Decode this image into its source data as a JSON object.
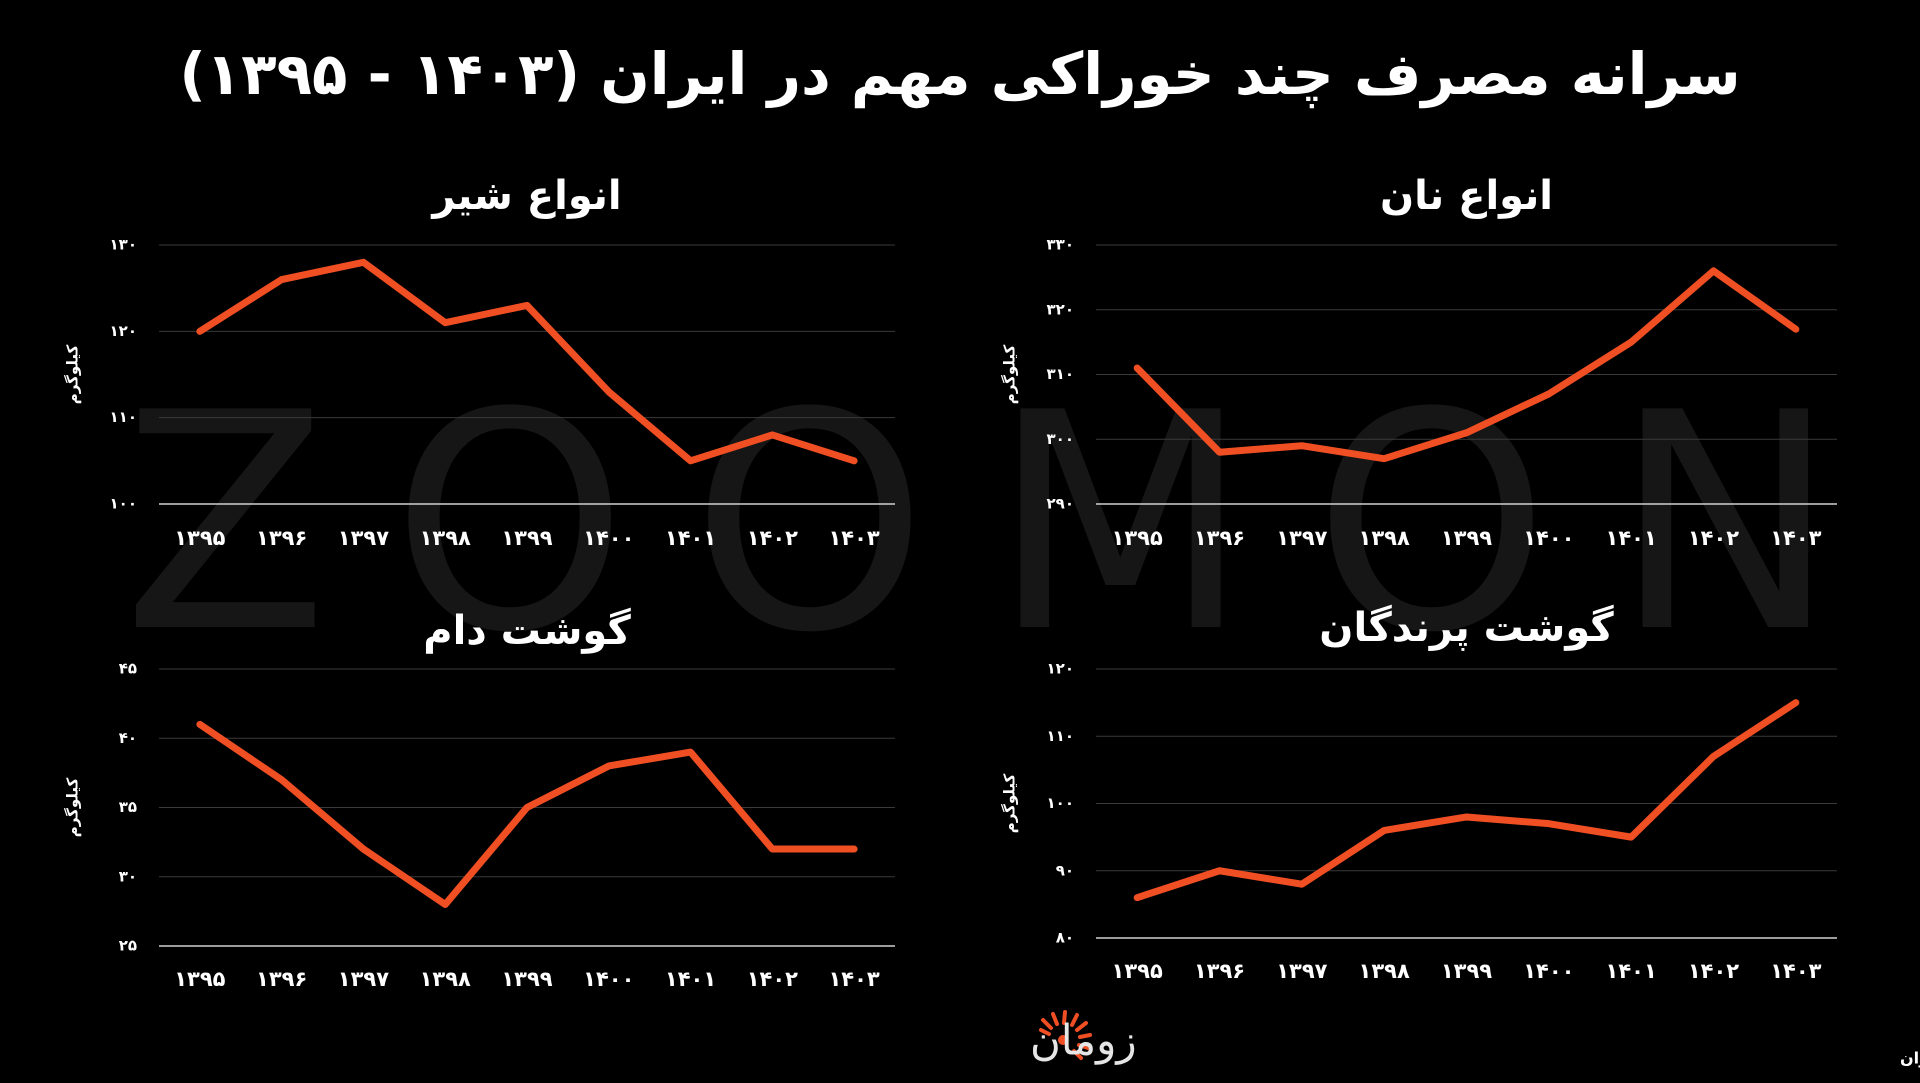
{
  "title": "سرانه مصرف چند خوراکی مهم در ایران (۱۴۰۳ - ۱۳۹۵)",
  "watermark": "ZOOMON",
  "brand": "زومان",
  "source": "منبع داده: بانک مرکزی ایران",
  "chart_data": [
    {
      "type": "line",
      "title": "انواع نان",
      "ylabel": "کیلوگرم",
      "color": "#f04e23",
      "grid": true,
      "categories": [
        "۱۳۹۵",
        "۱۳۹۶",
        "۱۳۹۷",
        "۱۳۹۸",
        "۱۳۹۹",
        "۱۴۰۰",
        "۱۴۰۱",
        "۱۴۰۲",
        "۱۴۰۳"
      ],
      "values": [
        311,
        298,
        299,
        297,
        301,
        307,
        315,
        326,
        317
      ],
      "ylim": [
        290,
        330
      ],
      "yticks": [
        {
          "value": 290,
          "label": "۲۹۰"
        },
        {
          "value": 300,
          "label": "۳۰۰"
        },
        {
          "value": 310,
          "label": "۳۱۰"
        },
        {
          "value": 320,
          "label": "۳۲۰"
        },
        {
          "value": 330,
          "label": "۳۳۰"
        }
      ]
    },
    {
      "type": "line",
      "title": "انواع شیر",
      "ylabel": "کیلوگرم",
      "color": "#f04e23",
      "grid": true,
      "categories": [
        "۱۳۹۵",
        "۱۳۹۶",
        "۱۳۹۷",
        "۱۳۹۸",
        "۱۳۹۹",
        "۱۴۰۰",
        "۱۴۰۱",
        "۱۴۰۲",
        "۱۴۰۳"
      ],
      "values": [
        120,
        126,
        128,
        121,
        123,
        113,
        105,
        108,
        105
      ],
      "ylim": [
        100,
        130
      ],
      "yticks": [
        {
          "value": 100,
          "label": "۱۰۰"
        },
        {
          "value": 110,
          "label": "۱۱۰"
        },
        {
          "value": 120,
          "label": "۱۲۰"
        },
        {
          "value": 130,
          "label": "۱۳۰"
        }
      ]
    },
    {
      "type": "line",
      "title": "گوشت پرندگان",
      "ylabel": "کیلوگرم",
      "color": "#f04e23",
      "grid": true,
      "categories": [
        "۱۳۹۵",
        "۱۳۹۶",
        "۱۳۹۷",
        "۱۳۹۸",
        "۱۳۹۹",
        "۱۴۰۰",
        "۱۴۰۱",
        "۱۴۰۲",
        "۱۴۰۳"
      ],
      "values": [
        86,
        90,
        88,
        96,
        98,
        97,
        95,
        107,
        115
      ],
      "ylim": [
        80,
        120
      ],
      "yticks": [
        {
          "value": 80,
          "label": "۸۰"
        },
        {
          "value": 90,
          "label": "۹۰"
        },
        {
          "value": 100,
          "label": "۱۰۰"
        },
        {
          "value": 110,
          "label": "۱۱۰"
        },
        {
          "value": 120,
          "label": "۱۲۰"
        }
      ]
    },
    {
      "type": "line",
      "title": "گوشت دام",
      "ylabel": "کیلوگرم",
      "color": "#f04e23",
      "grid": true,
      "categories": [
        "۱۳۹۵",
        "۱۳۹۶",
        "۱۳۹۷",
        "۱۳۹۸",
        "۱۳۹۹",
        "۱۴۰۰",
        "۱۴۰۱",
        "۱۴۰۲",
        "۱۴۰۳"
      ],
      "values": [
        41,
        37,
        32,
        28,
        35,
        38,
        39,
        32,
        32
      ],
      "ylim": [
        25,
        45
      ],
      "yticks": [
        {
          "value": 25,
          "label": "۲۵"
        },
        {
          "value": 30,
          "label": "۳۰"
        },
        {
          "value": 35,
          "label": "۳۵"
        },
        {
          "value": 40,
          "label": "۴۰"
        },
        {
          "value": 45,
          "label": "۴۵"
        }
      ]
    }
  ]
}
